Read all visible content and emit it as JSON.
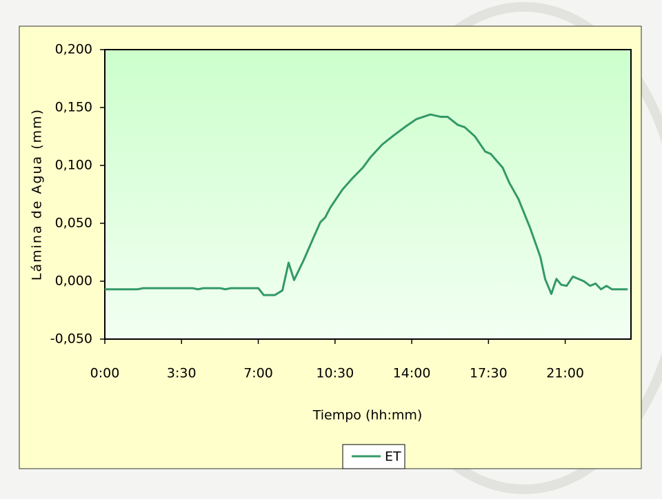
{
  "chart_data": {
    "type": "line",
    "y_label": "Lámina de Agua (mm)",
    "x_label": "Tiempo (hh:mm)",
    "x": [
      0,
      90,
      105,
      240,
      255,
      270,
      315,
      330,
      345,
      420,
      435,
      450,
      465,
      486,
      503,
      518,
      544,
      573,
      590,
      603,
      618,
      650,
      678,
      706,
      727,
      759,
      791,
      825,
      853,
      891,
      919,
      938,
      966,
      985,
      1013,
      1041,
      1056,
      1089,
      1107,
      1132,
      1164,
      1192,
      1205,
      1222,
      1236,
      1249,
      1264,
      1281,
      1311,
      1328,
      1343,
      1358,
      1373,
      1388,
      1431
    ],
    "series": [
      {
        "name": "ET",
        "color": "#339966",
        "values": [
          -0.007,
          -0.007,
          -0.006,
          -0.006,
          -0.007,
          -0.006,
          -0.006,
          -0.007,
          -0.006,
          -0.006,
          -0.012,
          -0.012,
          -0.012,
          -0.008,
          0.016,
          0.001,
          0.018,
          0.039,
          0.051,
          0.055,
          0.064,
          0.079,
          0.089,
          0.098,
          0.107,
          0.118,
          0.126,
          0.134,
          0.14,
          0.144,
          0.142,
          0.142,
          0.135,
          0.133,
          0.125,
          0.112,
          0.11,
          0.098,
          0.085,
          0.071,
          0.046,
          0.021,
          0.002,
          -0.011,
          0.002,
          -0.003,
          -0.004,
          0.004,
          0,
          -0.004,
          -0.002,
          -0.007,
          -0.004,
          -0.007,
          -0.007
        ]
      }
    ],
    "xlim": [
      0,
      1440
    ],
    "xticks": [
      {
        "value": 0,
        "label": "0:00"
      },
      {
        "value": 210,
        "label": "3:30"
      },
      {
        "value": 420,
        "label": "7:00"
      },
      {
        "value": 630,
        "label": "10:30"
      },
      {
        "value": 840,
        "label": "14:00"
      },
      {
        "value": 1050,
        "label": "17:30"
      },
      {
        "value": 1260,
        "label": "21:00"
      }
    ],
    "ylim": [
      -0.05,
      0.2
    ],
    "yticks": [
      {
        "value": -0.05,
        "label": "-0,050"
      },
      {
        "value": 0,
        "label": "0,000"
      },
      {
        "value": 0.05,
        "label": "0,050"
      },
      {
        "value": 0.1,
        "label": "0,100"
      },
      {
        "value": 0.15,
        "label": "0,150"
      },
      {
        "value": 0.2,
        "label": "0,200"
      }
    ]
  }
}
